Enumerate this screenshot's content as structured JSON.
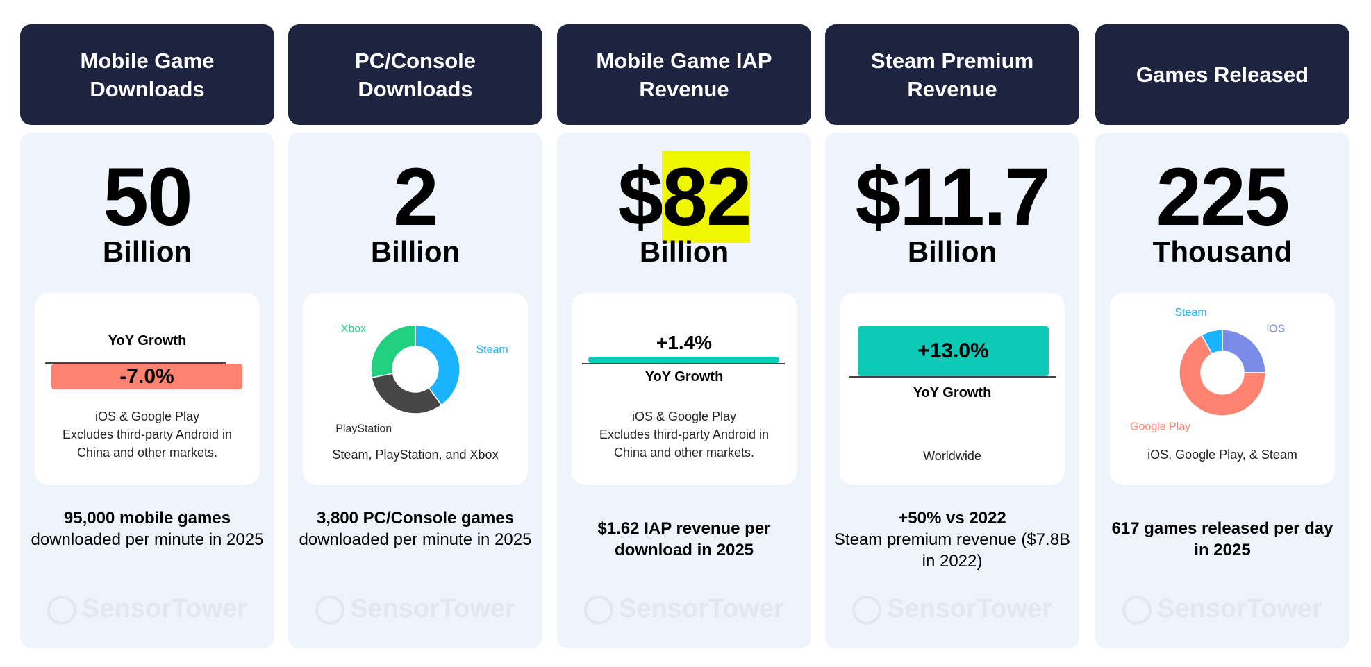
{
  "cards": [
    {
      "header": "Mobile Game Downloads",
      "value": "50",
      "unit": "Billion",
      "yoy_label": "YoY Growth",
      "yoy_value": "-7.0%",
      "note": [
        "iOS & Google Play",
        "Excludes third-party Android in",
        "China and other markets."
      ],
      "footer_bold": "95,000 mobile games",
      "footer": "downloaded per minute in 2025"
    },
    {
      "header": "PC/Console Downloads",
      "value": "2",
      "unit": "Billion",
      "note": [
        "Steam, PlayStation, and Xbox"
      ],
      "footer_bold": "3,800 PC/Console games",
      "footer": "downloaded per minute in 2025"
    },
    {
      "header": "Mobile Game IAP Revenue",
      "value_prefix": "$",
      "value": "82",
      "unit": "Billion",
      "yoy_label": "YoY Growth",
      "yoy_value": "+1.4%",
      "note": [
        "iOS & Google Play",
        "Excludes third-party Android in",
        "China and other markets."
      ],
      "footer_bold": "$1.62 IAP revenue per download in 2025"
    },
    {
      "header": "Steam Premium Revenue",
      "value": "$11.7",
      "unit": "Billion",
      "yoy_label": "YoY Growth",
      "yoy_value": "+13.0%",
      "note": [
        "Worldwide"
      ],
      "footer_bold": "+50% vs 2022",
      "footer": "Steam premium revenue ($7.8B in 2022)"
    },
    {
      "header": "Games Released",
      "value": "225",
      "unit": "Thousand",
      "note": [
        "iOS, Google Play, & Steam"
      ],
      "footer_bold": "617 games released per day in 2025"
    }
  ],
  "watermark": "SensorTower",
  "colors": {
    "header": "#1e2340",
    "negative": "#ff8370",
    "positive": "#0ccab6",
    "highlight": "#f0f500"
  },
  "chart_data": [
    {
      "type": "pie",
      "title": "PC/Console Downloads share",
      "categories": [
        "Steam",
        "PlayStation",
        "Xbox"
      ],
      "values": [
        40,
        32,
        28
      ],
      "colors": [
        "#1ab3ff",
        "#464646",
        "#22d17f"
      ]
    },
    {
      "type": "pie",
      "title": "Games Released share",
      "categories": [
        "iOS",
        "Google Play",
        "Steam"
      ],
      "values": [
        25,
        67,
        8
      ],
      "colors": [
        "#7b8ce8",
        "#ff8370",
        "#1ab3ff"
      ]
    }
  ]
}
